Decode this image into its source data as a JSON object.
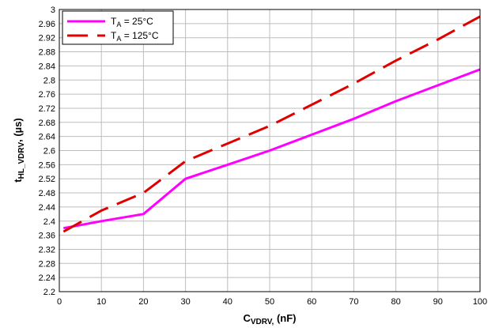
{
  "chart_data": {
    "type": "line",
    "xlabel": {
      "main": "C",
      "sub": "VDRV,",
      "unit": " (nF)"
    },
    "ylabel": {
      "main": "t",
      "sub": "HL_VDRV",
      "unit": ", (µs)"
    },
    "xlim": [
      0,
      100
    ],
    "ylim": [
      2.2,
      3.0
    ],
    "x_ticks": [
      "0",
      "10",
      "20",
      "30",
      "40",
      "50",
      "60",
      "70",
      "80",
      "90",
      "100"
    ],
    "y_ticks": [
      "2.2",
      "2.24",
      "2.28",
      "2.32",
      "2.36",
      "2.4",
      "2.44",
      "2.48",
      "2.52",
      "2.56",
      "2.6",
      "2.64",
      "2.68",
      "2.72",
      "2.76",
      "2.8",
      "2.84",
      "2.88",
      "2.92",
      "2.96",
      "3"
    ],
    "grid": true,
    "legend_position": "top-left",
    "series": [
      {
        "name": {
          "main": "T",
          "sub": "A",
          "rest": " = 25°C"
        },
        "color": "#ff00ff",
        "dash": "solid",
        "x": [
          1,
          10,
          20,
          30,
          40,
          50,
          60,
          70,
          80,
          90,
          100
        ],
        "y": [
          2.38,
          2.4,
          2.42,
          2.52,
          2.56,
          2.6,
          2.645,
          2.69,
          2.74,
          2.785,
          2.83
        ]
      },
      {
        "name": {
          "main": "T",
          "sub": "A",
          "rest": " = 125°C"
        },
        "color": "#e00000",
        "dash": "long-dash",
        "x": [
          1,
          10,
          20,
          30,
          40,
          50,
          60,
          70,
          80,
          90,
          100
        ],
        "y": [
          2.37,
          2.43,
          2.48,
          2.57,
          2.62,
          2.67,
          2.73,
          2.79,
          2.855,
          2.915,
          2.98
        ]
      }
    ]
  }
}
